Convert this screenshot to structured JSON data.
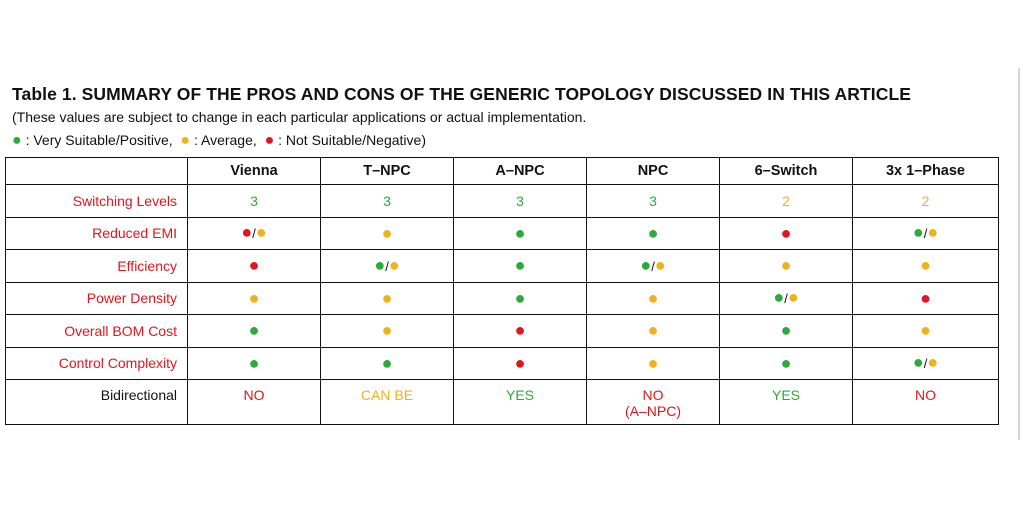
{
  "title": "Table 1. SUMMARY OF THE PROS AND CONS OF THE GENERIC TOPOLOGY DISCUSSED IN THIS ARTICLE",
  "subtitle": "(These values are subject to change in each particular applications or actual implementation.",
  "legend": {
    "dot_glyph": "●",
    "separator": "/",
    "green_label": ": Very Suitable/Positive,",
    "yellow_label": ": Average,",
    "red_label": ": Not Suitable/Negative)"
  },
  "colors": {
    "green": "#2bab3a",
    "yellow": "#f2b11b",
    "red": "#e3141b"
  },
  "columns": [
    "Vienna",
    "T–NPC",
    "A–NPC",
    "NPC",
    "6–Switch",
    "3x 1–Phase"
  ],
  "rows": [
    {
      "label": "Switching Levels",
      "cells": [
        {
          "text": "3",
          "color": "green"
        },
        {
          "text": "3",
          "color": "green"
        },
        {
          "text": "3",
          "color": "green"
        },
        {
          "text": "3",
          "color": "green"
        },
        {
          "text": "2",
          "color": "yellow"
        },
        {
          "text": "2",
          "color": "yellow"
        }
      ]
    },
    {
      "label": "Reduced EMI",
      "cells": [
        [
          "red",
          "yellow"
        ],
        [
          "yellow"
        ],
        [
          "green"
        ],
        [
          "green"
        ],
        [
          "red"
        ],
        [
          "green",
          "yellow"
        ]
      ]
    },
    {
      "label": "Efficiency",
      "cells": [
        [
          "red"
        ],
        [
          "green",
          "yellow"
        ],
        [
          "green"
        ],
        [
          "green",
          "yellow"
        ],
        [
          "yellow"
        ],
        [
          "yellow"
        ]
      ]
    },
    {
      "label": "Power Density",
      "cells": [
        [
          "yellow"
        ],
        [
          "yellow"
        ],
        [
          "green"
        ],
        [
          "yellow"
        ],
        [
          "green",
          "yellow"
        ],
        [
          "red"
        ]
      ]
    },
    {
      "label": "Overall BOM Cost",
      "cells": [
        [
          "green"
        ],
        [
          "yellow"
        ],
        [
          "red"
        ],
        [
          "yellow"
        ],
        [
          "green"
        ],
        [
          "yellow"
        ]
      ]
    },
    {
      "label": "Control Complexity",
      "cells": [
        [
          "green"
        ],
        [
          "green"
        ],
        [
          "red"
        ],
        [
          "yellow"
        ],
        [
          "green"
        ],
        [
          "green",
          "yellow"
        ]
      ]
    },
    {
      "label": "Bidirectional",
      "cells": [
        {
          "text": "NO",
          "color": "red"
        },
        {
          "text": "CAN BE",
          "color": "yellow"
        },
        {
          "text": "YES",
          "color": "green"
        },
        {
          "text": "NO",
          "sub": "(A–NPC)",
          "color": "red"
        },
        {
          "text": "YES",
          "color": "green"
        },
        {
          "text": "NO",
          "color": "red"
        }
      ]
    }
  ]
}
